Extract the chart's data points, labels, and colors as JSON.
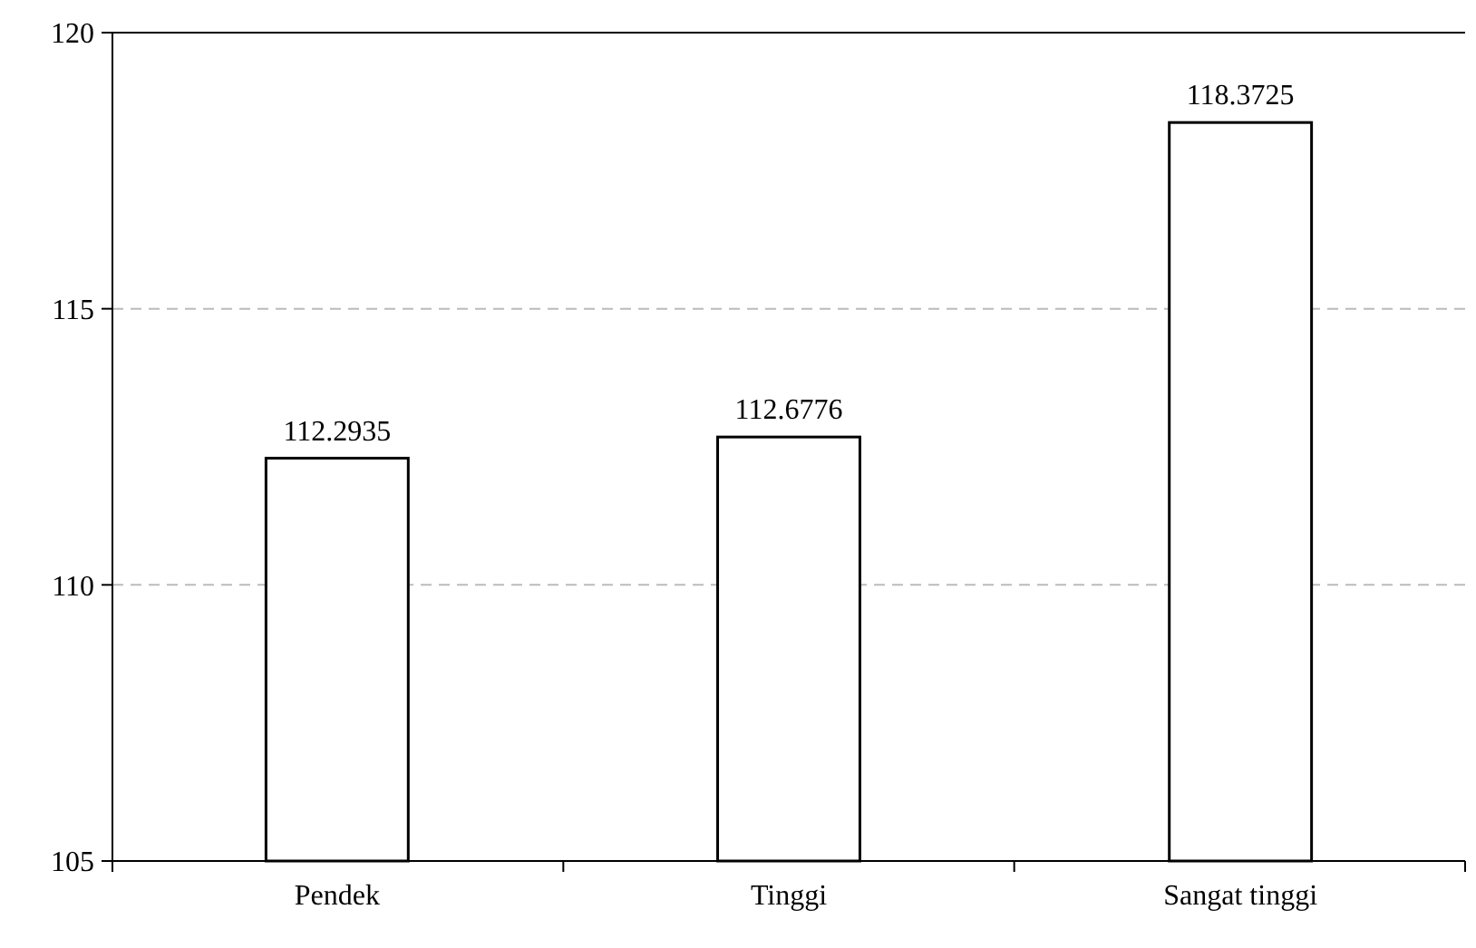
{
  "chart_data": {
    "type": "bar",
    "categories": [
      "Pendek",
      "Tinggi",
      "Sangat tinggi"
    ],
    "values": [
      112.2935,
      112.6776,
      118.3725
    ],
    "color": "#ffffff",
    "ylim": [
      105,
      120
    ],
    "yticks": [
      105,
      110,
      115,
      120
    ],
    "grid": "y",
    "data_labels": true
  }
}
